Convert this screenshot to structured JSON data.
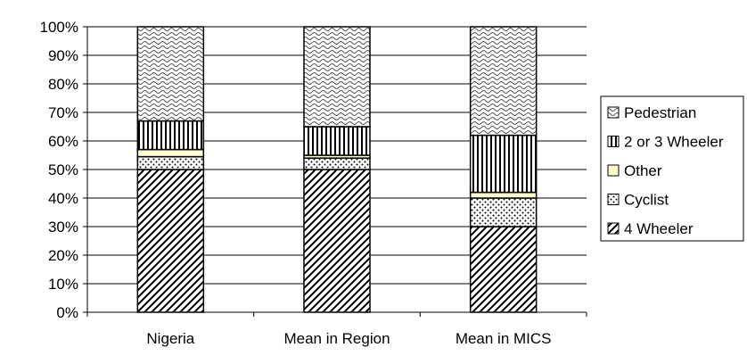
{
  "chart_data": {
    "type": "bar",
    "stacked": true,
    "orientation": "vertical",
    "categories": [
      "Nigeria",
      "Mean in Region",
      "Mean in MICS"
    ],
    "series": [
      {
        "name": "4 Wheeler",
        "values": [
          50,
          50,
          30
        ],
        "pattern": "diagonal-hatch",
        "color": "#ffffff"
      },
      {
        "name": "Cyclist",
        "values": [
          4.5,
          4,
          10
        ],
        "pattern": "dots",
        "color": "#ffffff"
      },
      {
        "name": "Other",
        "values": [
          2.5,
          1,
          2
        ],
        "pattern": "solid",
        "color": "#ffffcc"
      },
      {
        "name": "2 or 3 Wheeler",
        "values": [
          10,
          10,
          20
        ],
        "pattern": "vertical-stripes",
        "color": "#ffffff"
      },
      {
        "name": "Pedestrian",
        "values": [
          33,
          35,
          38
        ],
        "pattern": "wave",
        "color": "#ffffff"
      }
    ],
    "ylim": [
      0,
      100
    ],
    "yticks": [
      "0%",
      "10%",
      "20%",
      "30%",
      "40%",
      "50%",
      "60%",
      "70%",
      "80%",
      "90%",
      "100%"
    ],
    "grid": true,
    "legend_position": "right",
    "legend_order": [
      "Pedestrian",
      "2 or 3 Wheeler",
      "Other",
      "Cyclist",
      "4 Wheeler"
    ],
    "title": "",
    "xlabel": "",
    "ylabel": ""
  }
}
